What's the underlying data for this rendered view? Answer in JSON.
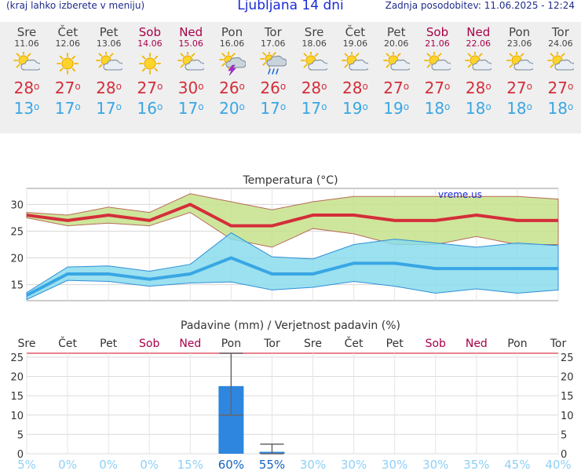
{
  "header": {
    "note": "(kraj lahko izberete v meniju)",
    "title": "Ljubljana 14 dni",
    "updated": "Zadnja posodobitev: 11.06.2025 - 12:24"
  },
  "days": [
    {
      "name": "Sre",
      "date": "11.06",
      "weekend": false,
      "icon": "sun-cloud-icon",
      "tmax": "28",
      "tmin": "13"
    },
    {
      "name": "Čet",
      "date": "12.06",
      "weekend": false,
      "icon": "sun-icon",
      "tmax": "27",
      "tmin": "17"
    },
    {
      "name": "Pet",
      "date": "13.06",
      "weekend": false,
      "icon": "sun-cloud-icon",
      "tmax": "28",
      "tmin": "17"
    },
    {
      "name": "Sob",
      "date": "14.06",
      "weekend": true,
      "icon": "sun-icon",
      "tmax": "27",
      "tmin": "16"
    },
    {
      "name": "Ned",
      "date": "15.06",
      "weekend": true,
      "icon": "sun-cloud-icon",
      "tmax": "30",
      "tmin": "17"
    },
    {
      "name": "Pon",
      "date": "16.06",
      "weekend": false,
      "icon": "thunderstorm-icon",
      "tmax": "26",
      "tmin": "20"
    },
    {
      "name": "Tor",
      "date": "17.06",
      "weekend": false,
      "icon": "rain-icon",
      "tmax": "26",
      "tmin": "17"
    },
    {
      "name": "Sre",
      "date": "18.06",
      "weekend": false,
      "icon": "sun-cloud-icon",
      "tmax": "28",
      "tmin": "17"
    },
    {
      "name": "Čet",
      "date": "19.06",
      "weekend": false,
      "icon": "sun-cloud-icon",
      "tmax": "28",
      "tmin": "19"
    },
    {
      "name": "Pet",
      "date": "20.06",
      "weekend": false,
      "icon": "sun-cloud-icon",
      "tmax": "27",
      "tmin": "19"
    },
    {
      "name": "Sob",
      "date": "21.06",
      "weekend": true,
      "icon": "sun-cloud-icon",
      "tmax": "27",
      "tmin": "18"
    },
    {
      "name": "Ned",
      "date": "22.06",
      "weekend": true,
      "icon": "sun-cloud-icon",
      "tmax": "28",
      "tmin": "18"
    },
    {
      "name": "Pon",
      "date": "23.06",
      "weekend": false,
      "icon": "sun-cloud-icon",
      "tmax": "27",
      "tmin": "18"
    },
    {
      "name": "Tor",
      "date": "24.06",
      "weekend": false,
      "icon": "sun-cloud-icon",
      "tmax": "27",
      "tmin": "18"
    }
  ],
  "chart_data": [
    {
      "type": "line",
      "title": "Temperatura (°C)",
      "watermark": "vreme.us",
      "x": [
        "Sre",
        "Čet",
        "Pet",
        "Sob",
        "Ned",
        "Pon",
        "Tor",
        "Sre",
        "Čet",
        "Pet",
        "Sob",
        "Ned",
        "Pon",
        "Tor"
      ],
      "ylim": [
        12,
        33
      ],
      "yticks": [
        15,
        20,
        25,
        30
      ],
      "grid": true,
      "colors": {
        "max": "#d42e3a",
        "min": "#39a6e4",
        "max_band": "#c6e28a",
        "min_band": "#8adcec",
        "band_edge_max": "#b76b5a",
        "band_edge_min": "#2f8fd8"
      },
      "series": [
        {
          "values": [
            28,
            27,
            28,
            27,
            30,
            26,
            26,
            28,
            28,
            27,
            27,
            28,
            27,
            27
          ]
        },
        {
          "values": [
            28.5,
            28,
            29.5,
            28.5,
            32,
            30.5,
            29,
            30.5,
            31.5,
            31.5,
            31.5,
            31.5,
            31.5,
            31
          ]
        },
        {
          "values": [
            27.5,
            26,
            26.5,
            26,
            28.5,
            23.5,
            22,
            25.5,
            24.5,
            22.5,
            22.5,
            24,
            22.5,
            22.5
          ]
        },
        {
          "values": [
            13,
            17,
            17,
            16,
            17,
            20,
            17,
            17,
            19,
            19,
            18,
            18,
            18,
            18
          ]
        },
        {
          "values": [
            13.5,
            18.3,
            18.5,
            17.5,
            18.8,
            24.7,
            20.2,
            19.8,
            22.5,
            23.5,
            22.8,
            22,
            22.8,
            22.3
          ]
        },
        {
          "values": [
            12.2,
            15.8,
            15.6,
            14.7,
            15.3,
            15.5,
            14,
            14.5,
            15.6,
            14.7,
            13.4,
            14.2,
            13.4,
            14
          ]
        }
      ]
    },
    {
      "type": "bar",
      "title": "Padavine (mm) / Verjetnost padavin (%)",
      "categories": [
        "Sre",
        "Čet",
        "Pet",
        "Sob",
        "Ned",
        "Pon",
        "Tor",
        "Sre",
        "Čet",
        "Pet",
        "Sob",
        "Ned",
        "Pon",
        "Tor"
      ],
      "weekend": [
        false,
        false,
        false,
        true,
        true,
        false,
        false,
        false,
        false,
        false,
        true,
        true,
        false,
        false
      ],
      "values": [
        0,
        0,
        0,
        0,
        0,
        17.5,
        0.5,
        0,
        0,
        0,
        0,
        0,
        0,
        0
      ],
      "error_high": [
        0,
        0,
        0,
        0,
        0,
        26,
        2.5,
        0,
        0,
        0,
        0,
        0,
        0,
        0
      ],
      "error_low": [
        0,
        0,
        0,
        0,
        0,
        10,
        0,
        0,
        0,
        0,
        0,
        0,
        0,
        0
      ],
      "probability": [
        "5%",
        "0%",
        "0%",
        "0%",
        "15%",
        "60%",
        "55%",
        "30%",
        "30%",
        "30%",
        "30%",
        "35%",
        "45%",
        "40%"
      ],
      "probability_value": [
        5,
        0,
        0,
        0,
        15,
        60,
        55,
        30,
        30,
        30,
        30,
        35,
        45,
        40
      ],
      "ylim": [
        0,
        26
      ],
      "yticks": [
        0,
        5,
        10,
        15,
        20,
        25
      ],
      "grid": true,
      "colors": {
        "bar": "#2e86de",
        "weekday": "#333333",
        "weekend": "#a8004a",
        "prob_strong": "#1565c0",
        "prob_weak": "#8fd0f5"
      }
    }
  ]
}
